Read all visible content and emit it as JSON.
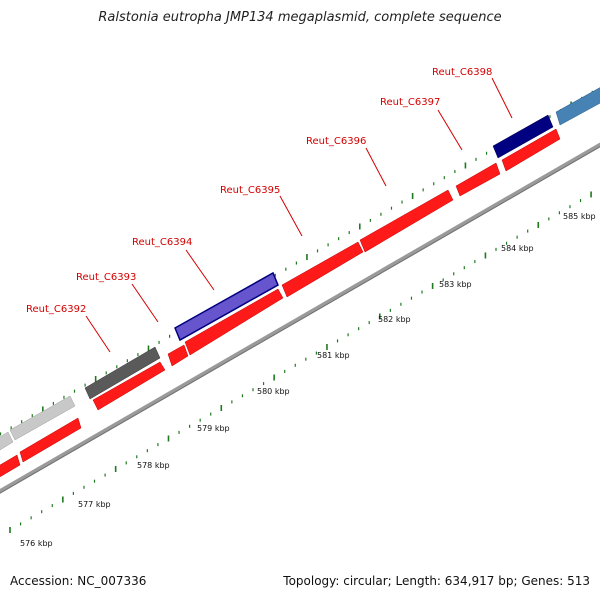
{
  "title": "Ralstonia eutropha JMP134 megaplasmid, complete sequence",
  "footer": {
    "accession": "Accession: NC_007336",
    "summary": "Topology: circular; Length: 634,917 bp; Genes: 513"
  },
  "colors": {
    "forward_gene": "#ff1a1a",
    "backbone": "#888888",
    "tick": "#1f7a1f",
    "label": "#d40000",
    "dark_gray": "#5a5a5a",
    "light_gray": "#c8c8c8",
    "dark_blue": "#000080",
    "mid_blue": "#4169b8",
    "steel_blue": "#4682b4"
  },
  "genes": [
    {
      "name": "Reut_C6392",
      "label": "Reut_C6392"
    },
    {
      "name": "Reut_C6393",
      "label": "Reut_C6393"
    },
    {
      "name": "Reut_C6394",
      "label": "Reut_C6394"
    },
    {
      "name": "Reut_C6395",
      "label": "Reut_C6395"
    },
    {
      "name": "Reut_C6396",
      "label": "Reut_C6396"
    },
    {
      "name": "Reut_C6397",
      "label": "Reut_C6397"
    },
    {
      "name": "Reut_C6398",
      "label": "Reut_C6398"
    }
  ],
  "kbp_ticks": [
    "576 kbp",
    "577 kbp",
    "578 kbp",
    "579 kbp",
    "580 kbp",
    "581 kbp",
    "582 kbp",
    "583 kbp",
    "584 kbp",
    "585 kbp"
  ]
}
